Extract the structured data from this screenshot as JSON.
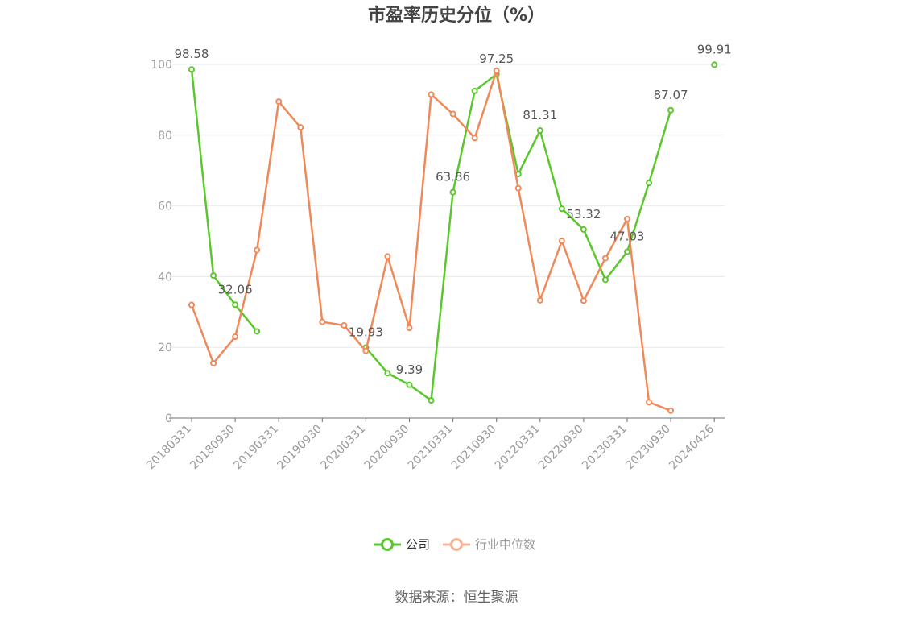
{
  "chart_data": {
    "type": "line",
    "title": "市盈率历史分位（%）",
    "ylim": [
      0,
      100
    ],
    "yticks": [
      "0",
      "20",
      "40",
      "60",
      "80",
      "100"
    ],
    "xtick_labels": [
      "20180331",
      "20180930",
      "20190331",
      "20190930",
      "20200331",
      "20200930",
      "20210331",
      "20210930",
      "20220331",
      "20220930",
      "20230331",
      "20230930",
      "20240426"
    ],
    "grid": true,
    "legend_position": "bottom",
    "series": [
      {
        "name": "公司",
        "color": "#5ac72c",
        "values": [
          98.58,
          40.3,
          32.06,
          24.5,
          null,
          null,
          null,
          null,
          19.93,
          12.7,
          9.39,
          5.0,
          63.86,
          92.5,
          97.25,
          69.0,
          81.31,
          59.2,
          53.32,
          39.1,
          47.03,
          66.5,
          87.07,
          null,
          99.91
        ],
        "labels": [
          "98.58",
          "",
          "32.06",
          "",
          "",
          "",
          "",
          "",
          "19.93",
          "",
          "9.39",
          "",
          "63.86",
          "",
          "97.25",
          "",
          "81.31",
          "",
          "53.32",
          "",
          "47.03",
          "",
          "87.07",
          "",
          "99.91"
        ]
      },
      {
        "name": "行业中位数",
        "color": "#f0895a",
        "values": [
          32.0,
          15.5,
          23.0,
          47.5,
          89.5,
          82.2,
          27.2,
          26.2,
          19.0,
          45.7,
          25.5,
          91.5,
          86.0,
          79.2,
          98.2,
          65.0,
          33.3,
          50.1,
          33.2,
          45.2,
          56.3,
          4.5,
          2.1,
          null,
          null
        ],
        "labels": []
      }
    ]
  },
  "source_text": "数据来源：恒生聚源"
}
